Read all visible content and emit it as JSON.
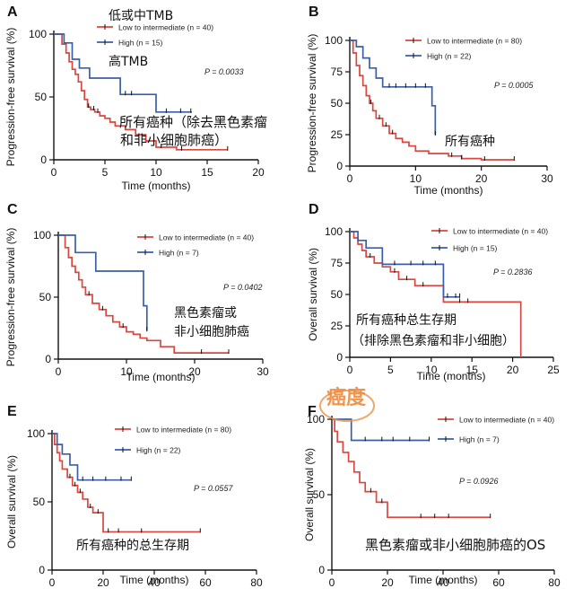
{
  "chart_data": [
    {
      "panel": "A",
      "type": "line",
      "step": true,
      "ylabel": "Progression-free survival (%)",
      "xlabel": "Time (months)",
      "xlim": [
        0,
        20
      ],
      "ylim": [
        0,
        100
      ],
      "xticks": [
        "0",
        "5",
        "10",
        "15",
        "20"
      ],
      "yticks": [
        "0",
        "50",
        "100"
      ],
      "series": [
        {
          "name": "Low to intermediate (n = 40)",
          "color": "#d9473f",
          "x": [
            0,
            0.8,
            1.2,
            1.5,
            1.8,
            2.1,
            2.4,
            2.7,
            3.0,
            3.3,
            3.6,
            4.0,
            4.5,
            5.0,
            5.5,
            6.0,
            7.0,
            8.0,
            9.0,
            10.0,
            12.0,
            17.0
          ],
          "y": [
            100,
            92,
            85,
            78,
            72,
            68,
            62,
            55,
            48,
            42,
            40,
            38,
            35,
            33,
            30,
            27,
            24,
            20,
            15,
            10,
            8,
            8
          ],
          "censor_x": [
            3.4,
            3.9,
            4.3,
            10.5,
            12.5,
            17.0
          ]
        },
        {
          "name": "High (n = 15)",
          "color": "#3a5ea8",
          "x": [
            0,
            1.0,
            1.8,
            2.5,
            3.5,
            6.5,
            10.0,
            13.5
          ],
          "y": [
            100,
            93,
            80,
            73,
            65,
            52,
            38,
            38
          ],
          "censor_x": [
            7.0,
            7.6,
            11.0,
            12.4,
            13.4
          ]
        }
      ],
      "pvalue": "P = 0.0033",
      "annotations": [
        "低或中TMB",
        "高TMB",
        "所有癌种（除去黑色素瘤",
        "和非小细胞肺癌）"
      ]
    },
    {
      "panel": "B",
      "type": "line",
      "step": true,
      "ylabel": "Progression-free survival (%)",
      "xlabel": "Time (months)",
      "xlim": [
        0,
        30
      ],
      "ylim": [
        0,
        100
      ],
      "xticks": [
        "0",
        "10",
        "20",
        "30"
      ],
      "yticks": [
        "0",
        "25",
        "50",
        "75",
        "100"
      ],
      "series": [
        {
          "name": "Low to intermediate (n = 80)",
          "color": "#d9473f",
          "x": [
            0,
            0.5,
            1.0,
            1.5,
            2.0,
            2.5,
            3.0,
            3.5,
            4.0,
            5.0,
            6.0,
            7.0,
            8.0,
            9.0,
            10.0,
            12.0,
            15.0,
            17.0,
            20.0,
            25.0
          ],
          "y": [
            100,
            90,
            80,
            72,
            64,
            56,
            50,
            44,
            38,
            32,
            26,
            22,
            19,
            16,
            12,
            10,
            8,
            6,
            5,
            5
          ],
          "censor_x": [
            3.2,
            4.5,
            5.5,
            6.5,
            15.5,
            17.0,
            20.5,
            25.0
          ]
        },
        {
          "name": "High (n = 22)",
          "color": "#3a5ea8",
          "x": [
            0,
            1.0,
            2.0,
            3.0,
            4.0,
            5.0,
            12.5,
            13.0
          ],
          "y": [
            100,
            95,
            86,
            78,
            70,
            63,
            48,
            25
          ],
          "censor_x": [
            6.0,
            7.0,
            8.5,
            10.0,
            11.5,
            13.0
          ]
        }
      ],
      "pvalue": "P = 0.0005",
      "annotations": [
        "所有癌种"
      ]
    },
    {
      "panel": "C",
      "type": "line",
      "step": true,
      "ylabel": "Progression-free survival (%)",
      "xlabel": "Time (months)",
      "xlim": [
        0,
        30
      ],
      "ylim": [
        0,
        100
      ],
      "xticks": [
        "0",
        "10",
        "20",
        "30"
      ],
      "yticks": [
        "0",
        "50",
        "100"
      ],
      "series": [
        {
          "name": "Low to intermediate (n = 40)",
          "color": "#d9473f",
          "x": [
            0,
            1.0,
            1.5,
            2.0,
            2.5,
            3.0,
            3.5,
            4.0,
            5.0,
            6.0,
            7.0,
            8.0,
            9.0,
            10.0,
            11.0,
            12.0,
            13.0,
            15.0,
            17.0,
            25.0
          ],
          "y": [
            100,
            90,
            82,
            75,
            70,
            64,
            58,
            52,
            45,
            40,
            35,
            30,
            26,
            22,
            20,
            17,
            15,
            10,
            5,
            5
          ],
          "censor_x": [
            4.5,
            6.5,
            9.5,
            21.0,
            25.0
          ]
        },
        {
          "name": "High (n = 7)",
          "color": "#3a5ea8",
          "x": [
            0,
            2.5,
            5.5,
            12.5,
            13.0
          ],
          "y": [
            100,
            86,
            71,
            43,
            23
          ],
          "censor_x": [
            13.0
          ]
        }
      ],
      "pvalue": "P = 0.0402",
      "annotations": [
        "黑色素瘤或",
        "非小细胞肺癌"
      ]
    },
    {
      "panel": "D",
      "type": "line",
      "step": true,
      "ylabel": "Overall survival (%)",
      "xlabel": "Time (months)",
      "xlim": [
        0,
        25
      ],
      "ylim": [
        0,
        100
      ],
      "xticks": [
        "0",
        "5",
        "10",
        "15",
        "20",
        "25"
      ],
      "yticks": [
        "0",
        "25",
        "50",
        "75",
        "100"
      ],
      "series": [
        {
          "name": "Low to intermediate (n = 40)",
          "color": "#d9473f",
          "x": [
            0,
            0.5,
            1.0,
            1.5,
            2.0,
            3.0,
            4.0,
            5.0,
            6.0,
            8.0,
            11.5,
            21.0
          ],
          "y": [
            100,
            95,
            90,
            85,
            80,
            75,
            72,
            68,
            62,
            57,
            44,
            0
          ],
          "censor_x": [
            2.5,
            5.5,
            7.0,
            9.0,
            13.5,
            14.5
          ]
        },
        {
          "name": "High (n = 15)",
          "color": "#3a5ea8",
          "x": [
            0,
            1.0,
            2.0,
            4.0,
            11.5,
            13.5
          ],
          "y": [
            100,
            93,
            87,
            74,
            48,
            48
          ],
          "censor_x": [
            5.5,
            7.5,
            9.0,
            10.5,
            12.0,
            13.0,
            13.5
          ]
        }
      ],
      "pvalue": "P = 0.2836",
      "annotations": [
        "所有癌种总生存期",
        "（排除黑色素瘤和非小细胞）"
      ]
    },
    {
      "panel": "E",
      "type": "line",
      "step": true,
      "ylabel": "Overall survival (%)",
      "xlabel": "Time (months)",
      "xlim": [
        0,
        80
      ],
      "ylim": [
        0,
        100
      ],
      "xticks": [
        "0",
        "20",
        "40",
        "60",
        "80"
      ],
      "yticks": [
        "0",
        "50",
        "100"
      ],
      "series": [
        {
          "name": "Low to intermediate (n = 80)",
          "color": "#d9473f",
          "x": [
            0,
            1.0,
            2.0,
            3.0,
            4.0,
            6.0,
            8.0,
            10.0,
            12.0,
            14.0,
            16.0,
            20.0,
            58.0
          ],
          "y": [
            100,
            92,
            86,
            80,
            74,
            68,
            62,
            57,
            52,
            46,
            42,
            28,
            28
          ],
          "censor_x": [
            7.0,
            9.0,
            11.0,
            15.0,
            18.0,
            22.0,
            26.0,
            35.0,
            58.0
          ]
        },
        {
          "name": "High (n = 22)",
          "color": "#3a5ea8",
          "x": [
            0,
            2.0,
            4.0,
            7.0,
            10.0,
            31.0
          ],
          "y": [
            100,
            92,
            85,
            77,
            66,
            66
          ],
          "censor_x": [
            12.0,
            16.0,
            21.0,
            27.0,
            31.0
          ]
        }
      ],
      "pvalue": "P = 0.0557",
      "annotations": [
        "所有癌种的总生存期"
      ]
    },
    {
      "panel": "F",
      "type": "line",
      "step": true,
      "ylabel": "Overall survival (%)",
      "xlabel": "Time (months)",
      "xlim": [
        0,
        80
      ],
      "ylim": [
        0,
        100
      ],
      "xticks": [
        "0",
        "20",
        "40",
        "60",
        "80"
      ],
      "yticks": [
        "0",
        "50",
        "100"
      ],
      "series": [
        {
          "name": "Low to intermediate (n = 40)",
          "color": "#d9473f",
          "x": [
            0,
            1.0,
            2.0,
            4.0,
            6.0,
            8.0,
            10.0,
            12.0,
            16.0,
            20.0,
            57.0
          ],
          "y": [
            100,
            92,
            85,
            78,
            72,
            65,
            58,
            52,
            45,
            35,
            35
          ],
          "censor_x": [
            14.0,
            18.0,
            32.0,
            37.0,
            42.0,
            57.0
          ]
        },
        {
          "name": "High (n = 7)",
          "color": "#3a5ea8",
          "x": [
            0,
            7.0,
            35.0
          ],
          "y": [
            100,
            86,
            86
          ],
          "censor_x": [
            12.0,
            18.0,
            22.0,
            28.0,
            35.0
          ]
        }
      ],
      "pvalue": "P = 0.0926",
      "annotations": [
        "黑色素瘤或非小细胞肺癌的OS"
      ]
    }
  ],
  "watermark": "癌度"
}
